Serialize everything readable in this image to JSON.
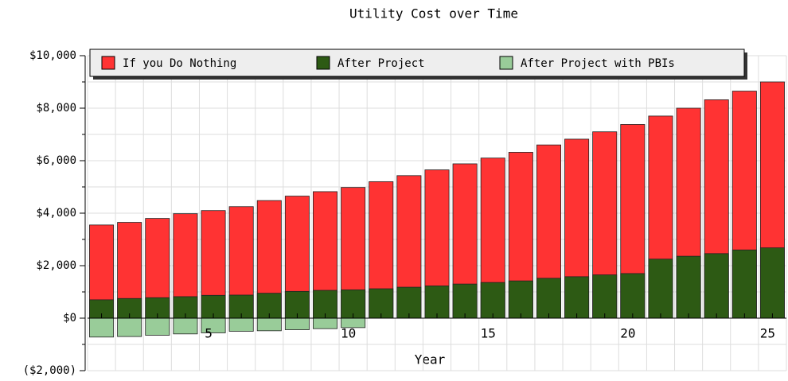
{
  "chart_data": {
    "type": "bar",
    "title": "Utility Cost over Time",
    "x_label": "Year",
    "categories": [
      null,
      null,
      null,
      null,
      "5",
      null,
      null,
      null,
      null,
      "10",
      null,
      null,
      null,
      null,
      "15",
      null,
      null,
      null,
      null,
      "20",
      null,
      null,
      null,
      null,
      "25"
    ],
    "series": [
      {
        "name": "If you Do Nothing",
        "color": "#ff3333",
        "values": [
          3550,
          3650,
          3800,
          3980,
          4100,
          4250,
          4480,
          4650,
          4820,
          4980,
          5200,
          5430,
          5650,
          5880,
          6100,
          6320,
          6600,
          6820,
          7100,
          7380,
          7700,
          8000,
          8320,
          8650,
          9000
        ]
      },
      {
        "name": "After Project",
        "color": "#2d5a14",
        "values": [
          700,
          750,
          780,
          820,
          870,
          880,
          950,
          1020,
          1060,
          1080,
          1120,
          1180,
          1230,
          1300,
          1360,
          1420,
          1520,
          1580,
          1650,
          1700,
          2250,
          2360,
          2460,
          2600,
          2680
        ]
      },
      {
        "name": "After Project with PBIs",
        "color": "#99cc99",
        "values": [
          -720,
          -700,
          -650,
          -600,
          -560,
          -500,
          -480,
          -440,
          -400,
          -360,
          null,
          null,
          null,
          null,
          null,
          null,
          null,
          null,
          null,
          null,
          null,
          null,
          null,
          null,
          null
        ]
      }
    ],
    "ylim": [
      -2000,
      10000
    ],
    "yticks": [
      {
        "value": -2000,
        "label": "($2,000)"
      },
      {
        "value": 0,
        "label": "$0"
      },
      {
        "value": 2000,
        "label": "$2,000"
      },
      {
        "value": 4000,
        "label": "$4,000"
      },
      {
        "value": 6000,
        "label": "$6,000"
      },
      {
        "value": 8000,
        "label": "$8,000"
      },
      {
        "value": 10000,
        "label": "$10,000"
      }
    ],
    "grid": true,
    "legend": "top"
  }
}
